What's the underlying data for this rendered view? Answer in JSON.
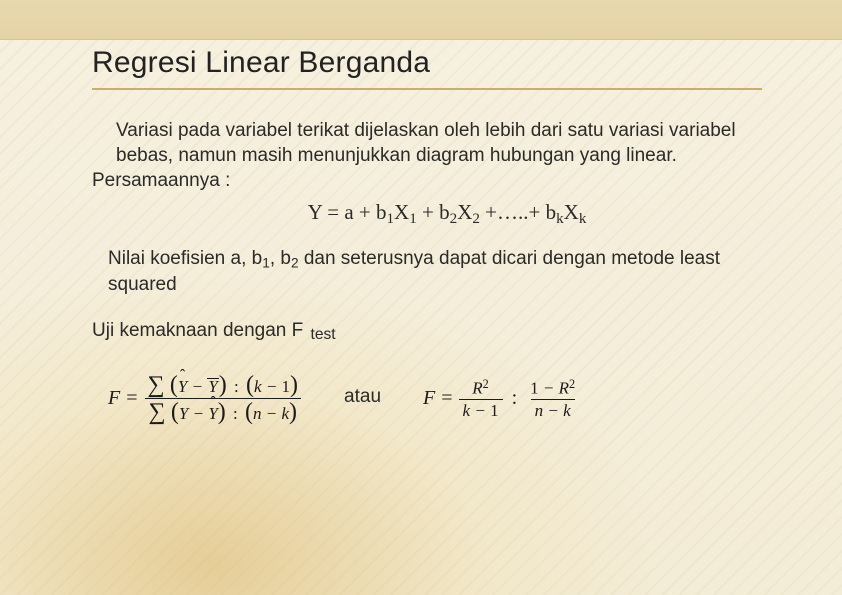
{
  "colors": {
    "background_top": "#e7d9b0",
    "background_main": "#f3ecd6",
    "accent_glow": "#e3c88c",
    "title_underline": "#c9b06a",
    "text": "#2a2a28"
  },
  "title": "Regresi Linear Berganda",
  "intro": "Variasi pada variabel terikat dijelaskan oleh lebih dari satu variasi variabel bebas, namun masih menunjukkan diagram hubungan yang linear.",
  "persamaan_label": "Persamaannya :",
  "equation_text": "Y = a + b1X1+ b2X2+…..+ bkXk",
  "equation": {
    "lhs": "Y",
    "intercept": "a",
    "terms": [
      {
        "coef": "b",
        "coef_sub": "1",
        "var": "X",
        "var_sub": "1"
      },
      {
        "coef": "b",
        "coef_sub": "2",
        "var": "X",
        "var_sub": "2"
      }
    ],
    "ellipsis": "…..",
    "last_term": {
      "coef": "b",
      "coef_sub": "k",
      "var": "X",
      "var_sub": "k"
    }
  },
  "note": "Nilai koefisien a, b1, b2 dan seterusnya dapat dicari dengan metode least squared",
  "ftest_label_prefix": "Uji kemaknaan dengan F",
  "ftest_label_suffix": "test",
  "or_word": "atau",
  "formula_left": {
    "eq_label": "F",
    "numerator": "Σ ( Ŷ − Ȳ ) : (k − 1)",
    "denominator": "Σ ( Y − Ŷ ) : (n − k)"
  },
  "formula_right": {
    "eq_label": "F",
    "left": {
      "num": "R²",
      "den": "k − 1"
    },
    "right": {
      "num": "1 − R²",
      "den": "n − k"
    }
  }
}
